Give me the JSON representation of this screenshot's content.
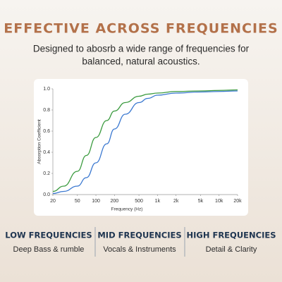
{
  "header": {
    "title": "EFFECTIVE ACROSS FREQUENCIES",
    "subtitle": [
      "Designed to abosrb a wide range of frequencies for",
      "balanced, natural acoustics."
    ]
  },
  "chart_data": {
    "type": "line",
    "x": [
      20,
      30,
      50,
      70,
      100,
      150,
      200,
      300,
      500,
      700,
      1000,
      2000,
      5000,
      10000,
      20000
    ],
    "series": [
      {
        "color": "#3a9a3e",
        "values": [
          0.03,
          0.08,
          0.22,
          0.37,
          0.54,
          0.7,
          0.79,
          0.87,
          0.93,
          0.95,
          0.96,
          0.975,
          0.98,
          0.985,
          0.99
        ]
      },
      {
        "color": "#3a78d0",
        "values": [
          0.01,
          0.03,
          0.08,
          0.16,
          0.3,
          0.48,
          0.62,
          0.76,
          0.87,
          0.91,
          0.94,
          0.96,
          0.97,
          0.975,
          0.98
        ]
      }
    ],
    "xscale": "log",
    "xlim": [
      20,
      20000
    ],
    "xticks": [
      20,
      50,
      100,
      200,
      500,
      {
        "value": 1000,
        "label": "1k"
      },
      {
        "value": 2000,
        "label": "2k"
      },
      {
        "value": 5000,
        "label": "5k"
      },
      {
        "value": 10000,
        "label": "10k"
      },
      {
        "value": 20000,
        "label": "20k"
      }
    ],
    "ylim": [
      0,
      1
    ],
    "yticks": [
      {
        "value": 0,
        "label": "0.0"
      },
      0.2,
      0.4,
      0.6,
      0.8,
      {
        "value": 1,
        "label": "1.0"
      }
    ],
    "xlabel": "Frequency (Hz)",
    "ylabel": "Absorption Coefficient",
    "grid": false
  },
  "features": [
    {
      "title": "LOW FREQUENCIES",
      "text": "Deep Bass & rumble"
    },
    {
      "title": "MID FREQUENCIES",
      "text": "Vocals & Instruments"
    },
    {
      "title": "HIGH FREQUENCIES",
      "text": "Detail & Clarity"
    }
  ]
}
